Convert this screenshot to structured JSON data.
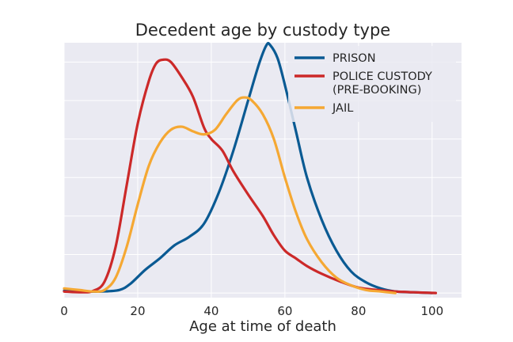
{
  "chart_data": {
    "type": "line",
    "title": "Decedent age by custody type",
    "xlabel": "Age at time of death",
    "ylabel": "",
    "xlim": [
      0,
      108
    ],
    "ylim": [
      -0.0006,
      0.0325
    ],
    "x_ticks": [
      0,
      20,
      40,
      60,
      80,
      100
    ],
    "x_tick_labels": [
      "0",
      "20",
      "40",
      "60",
      "80",
      "100"
    ],
    "y_tick_labels_visible": false,
    "grid": true,
    "legend_position": "top-right",
    "colors": {
      "background": "#eaeaf2",
      "grid": "#ffffff"
    },
    "series": [
      {
        "name": "PRISON",
        "color": "#0a5a93",
        "points": [
          [
            0,
            0.0003
          ],
          [
            5,
            0.0002
          ],
          [
            10,
            0.0002
          ],
          [
            15,
            0.0004
          ],
          [
            18,
            0.0012
          ],
          [
            22,
            0.003
          ],
          [
            26,
            0.0045
          ],
          [
            30,
            0.0062
          ],
          [
            34,
            0.0073
          ],
          [
            38,
            0.009
          ],
          [
            42,
            0.013
          ],
          [
            46,
            0.0185
          ],
          [
            50,
            0.025
          ],
          [
            53,
            0.0298
          ],
          [
            55,
            0.0322
          ],
          [
            56,
            0.0322
          ],
          [
            58,
            0.0305
          ],
          [
            60,
            0.027
          ],
          [
            63,
            0.021
          ],
          [
            66,
            0.015
          ],
          [
            70,
            0.0095
          ],
          [
            74,
            0.0055
          ],
          [
            78,
            0.0028
          ],
          [
            82,
            0.0014
          ],
          [
            86,
            0.0006
          ],
          [
            90,
            0.0002
          ],
          [
            95,
            0.0001
          ],
          [
            100,
            0.0
          ]
        ]
      },
      {
        "name": "POLICE CUSTODY\n(PRE-BOOKING)",
        "color": "#cc2929",
        "points": [
          [
            0,
            0.0002
          ],
          [
            5,
            0.0001
          ],
          [
            8,
            0.0003
          ],
          [
            11,
            0.0015
          ],
          [
            14,
            0.006
          ],
          [
            17,
            0.014
          ],
          [
            20,
            0.022
          ],
          [
            23,
            0.0275
          ],
          [
            25,
            0.0298
          ],
          [
            27,
            0.0303
          ],
          [
            29,
            0.03
          ],
          [
            32,
            0.028
          ],
          [
            35,
            0.0255
          ],
          [
            38,
            0.0215
          ],
          [
            40,
            0.02
          ],
          [
            43,
            0.0185
          ],
          [
            46,
            0.0158
          ],
          [
            50,
            0.0128
          ],
          [
            54,
            0.01
          ],
          [
            57,
            0.0075
          ],
          [
            60,
            0.0055
          ],
          [
            63,
            0.0045
          ],
          [
            66,
            0.0035
          ],
          [
            70,
            0.0025
          ],
          [
            75,
            0.0015
          ],
          [
            80,
            0.0007
          ],
          [
            85,
            0.0004
          ],
          [
            90,
            0.0002
          ],
          [
            95,
            0.0001
          ],
          [
            101,
            0.0
          ]
        ]
      },
      {
        "name": "JAIL",
        "color": "#f5a833",
        "points": [
          [
            0,
            0.0006
          ],
          [
            4,
            0.0004
          ],
          [
            8,
            0.0002
          ],
          [
            11,
            0.0004
          ],
          [
            14,
            0.002
          ],
          [
            17,
            0.006
          ],
          [
            20,
            0.0115
          ],
          [
            23,
            0.0165
          ],
          [
            26,
            0.0195
          ],
          [
            29,
            0.0212
          ],
          [
            32,
            0.0216
          ],
          [
            35,
            0.021
          ],
          [
            38,
            0.0206
          ],
          [
            41,
            0.0212
          ],
          [
            44,
            0.0232
          ],
          [
            47,
            0.025
          ],
          [
            49,
            0.0254
          ],
          [
            51,
            0.025
          ],
          [
            54,
            0.0232
          ],
          [
            57,
            0.02
          ],
          [
            60,
            0.015
          ],
          [
            63,
            0.0105
          ],
          [
            66,
            0.007
          ],
          [
            70,
            0.004
          ],
          [
            74,
            0.002
          ],
          [
            78,
            0.001
          ],
          [
            82,
            0.0004
          ],
          [
            86,
            0.0002
          ],
          [
            90,
            0.0
          ]
        ]
      }
    ]
  }
}
